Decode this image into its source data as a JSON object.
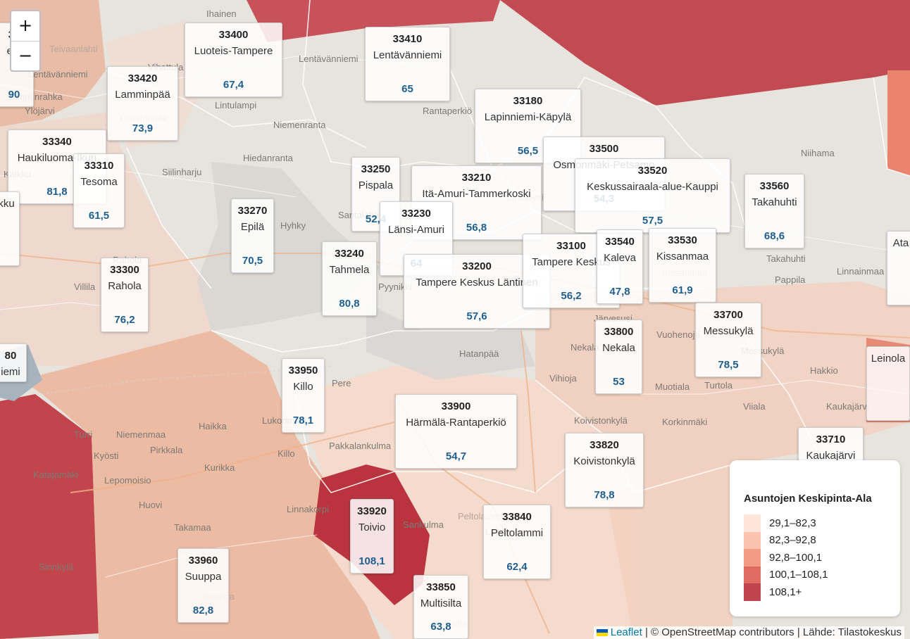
{
  "map": {
    "place_labels": [
      "Ihainen",
      "Teivaanlahti",
      "Vihattula",
      "Lentävänniemi",
      "Lamminrahka",
      "Lentävänniemi",
      "Ylöjärvi",
      "Lintulampi",
      "Niemenranta",
      "Rantaperkiö",
      "Hiedanranta",
      "Siilinharju",
      "Kalkku",
      "Lamminpää",
      "Hyhky",
      "Santalahti",
      "Rahola",
      "Villila",
      "Pyynikki",
      "Tahmelan",
      "Niihama",
      "Lintuhytti",
      "Pappila",
      "Linnainmaa",
      "Takahuhti",
      "Kissanmaa",
      "Järvesusi",
      "Vuohenoja",
      "Messukylä",
      "Hakkio",
      "Nekala",
      "Hatanpää",
      "Vihioja",
      "Muotiala",
      "Turtola",
      "Viiala",
      "Kaukajärvi",
      "Koivistonkylä",
      "Korkinmäki",
      "Pere",
      "Haikka",
      "Niemenmaa",
      "Turri",
      "Kyösti",
      "Pirkkala",
      "Kurikka",
      "Lepomoisio",
      "Pakkalankulma",
      "Lukonmäki",
      "Killo",
      "Huovi",
      "Takamaa",
      "Linnakorpi",
      "Sionkylä",
      "Suuppa",
      "Sankulma",
      "Lakalaiva",
      "Peltolammi",
      "Multisilta",
      "Katajamäki"
    ],
    "zip_areas": [
      {
        "code": "33400",
        "name": "Luoteis-Tampere",
        "value": "67,4"
      },
      {
        "code": "33410",
        "name": "Lentävänniemi",
        "value": "65"
      },
      {
        "code": "33420",
        "name": "Lamminpää",
        "value": "73,9"
      },
      {
        "code": "33180",
        "name": "Lapinniemi-Käpylä",
        "value": "56,5"
      },
      {
        "code": "33340",
        "name": "Haukiluoma-Ikuri",
        "value": "81,8"
      },
      {
        "code": "33310",
        "name": "Tesoma",
        "value": "61,5"
      },
      {
        "code": "33250",
        "name": "Pispala",
        "value": "52,4"
      },
      {
        "code": "33210",
        "name": "Itä-Amuri-Tammerkoski",
        "value": "56,8"
      },
      {
        "code": "33500",
        "name": "Osmonmäki-Petsamo",
        "value": "54,3"
      },
      {
        "code": "33520",
        "name": "Keskussairaala-alue-Kauppi",
        "value": "57,5"
      },
      {
        "code": "33560",
        "name": "Takahuhti",
        "value": "68,6"
      },
      {
        "code": "33270",
        "name": "Epilä",
        "value": "70,5"
      },
      {
        "code": "33230",
        "name": "Länsi-Amuri",
        "value": "64"
      },
      {
        "code": "33240",
        "name": "Tahmela",
        "value": "80,8"
      },
      {
        "code": "33200",
        "name": "Tampere Keskus Läntinen",
        "value": "57,6"
      },
      {
        "code": "33100",
        "name": "Tampere Keskus",
        "value": "56,2"
      },
      {
        "code": "33540",
        "name": "Kaleva",
        "value": "47,8"
      },
      {
        "code": "33530",
        "name": "Kissanmaa",
        "value": "61,9"
      },
      {
        "code": "33300",
        "name": "Rahola",
        "value": "76,2"
      },
      {
        "code": "33700",
        "name": "Messukylä",
        "value": "78,5"
      },
      {
        "code": "33800",
        "name": "Nekala",
        "value": "53"
      },
      {
        "code": "33950",
        "name": "Killo",
        "value": "78,1"
      },
      {
        "code": "33900",
        "name": "Härmälä-Rantaperkiö",
        "value": "54,7"
      },
      {
        "code": "33820",
        "name": "Koivistonkylä",
        "value": "78,8"
      },
      {
        "code": "33710",
        "name": "Kaukajärvi",
        "value": ""
      },
      {
        "code": "33920",
        "name": "Toivio",
        "value": "108,1"
      },
      {
        "code": "33840",
        "name": "Peltolammi",
        "value": "62,4"
      },
      {
        "code": "33960",
        "name": "Suuppa",
        "value": "82,8"
      },
      {
        "code": "33850",
        "name": "Multisilta",
        "value": "63,8"
      },
      {
        "code": "34",
        "name": "ent",
        "value": "90"
      },
      {
        "code": "",
        "name": "kku",
        "value": ""
      },
      {
        "code": "80",
        "name": "iemi",
        "value": ""
      },
      {
        "code": "",
        "name": "Ata",
        "value": ""
      },
      {
        "code": "",
        "name": "Leinola",
        "value": ""
      }
    ]
  },
  "zoom": {
    "in_label": "+",
    "out_label": "−"
  },
  "legend": {
    "title": "Asuntojen Keskipinta-Ala",
    "items": [
      {
        "label": "29,1–82,3",
        "color": "#fde5da"
      },
      {
        "label": "82,3–92,8",
        "color": "#f9c3ad"
      },
      {
        "label": "92,8–100,1",
        "color": "#f29c85"
      },
      {
        "label": "100,1–108,1",
        "color": "#e06b63"
      },
      {
        "label": "108,1+",
        "color": "#c0444d"
      }
    ]
  },
  "attribution": {
    "leaflet": "Leaflet",
    "osm": "© OpenStreetMap contributors",
    "source": "Lähde: Tilastokeskus",
    "sep": " | "
  }
}
